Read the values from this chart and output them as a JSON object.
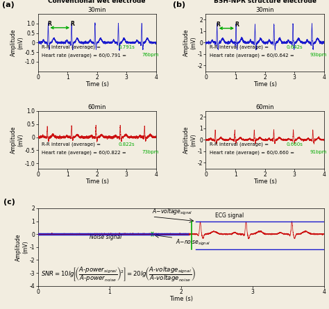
{
  "title_a": "Conventional wet electrode",
  "title_b": "BSH-NPR structure electrode",
  "panel_a_label": "(a)",
  "panel_b_label": "(b)",
  "panel_c_label": "(c)",
  "time_label": "Time (s)",
  "background": "#f2ede0",
  "a_30min_ylim": [
    -1.5,
    1.5
  ],
  "a_30min_yticks": [
    -1.0,
    -0.5,
    0.0,
    0.5,
    1.0
  ],
  "a_30min_ytick_labels": [
    "-1.0",
    "-0.5",
    "0",
    "0.5",
    "1.0"
  ],
  "a_60min_ylim": [
    -1.2,
    1.0
  ],
  "a_60min_yticks": [
    -1.0,
    -0.5,
    0.0,
    0.5,
    1.0
  ],
  "a_60min_ytick_labels": [
    "-1.0",
    "-0.5",
    "0",
    "0.5",
    "1.0"
  ],
  "b_30min_ylim": [
    -2.5,
    2.5
  ],
  "b_30min_yticks": [
    -2,
    -1,
    0,
    1,
    2
  ],
  "b_30min_ytick_labels": [
    "-2",
    "-1",
    "0",
    "1",
    "2"
  ],
  "b_60min_ylim": [
    -2.5,
    2.5
  ],
  "b_60min_yticks": [
    -2,
    -1,
    0,
    1,
    2
  ],
  "b_60min_ytick_labels": [
    "-2",
    "-1",
    "0",
    "1",
    "2"
  ],
  "c_ylim": [
    -4,
    2
  ],
  "c_yticks": [
    -4,
    -3,
    -2,
    -1,
    0,
    1,
    2
  ],
  "blue": "#1a1acd",
  "red": "#cc1111",
  "green": "#00aa00",
  "dark_green": "#007700"
}
